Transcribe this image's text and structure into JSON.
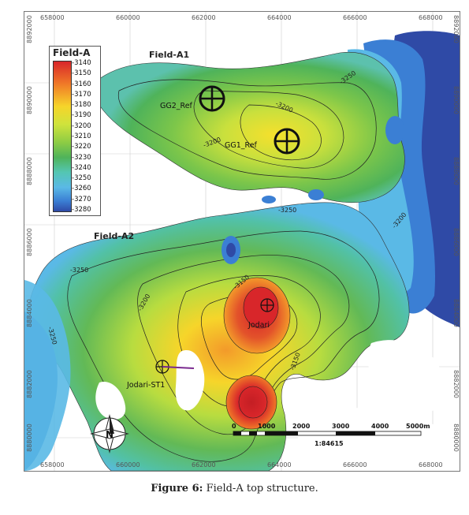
{
  "map": {
    "x_ticks_top": [
      "658000",
      "660000",
      "662000",
      "664000",
      "666000",
      "668000"
    ],
    "x_ticks_bottom": [
      "658000",
      "660000",
      "662000",
      "664000",
      "666000",
      "668000"
    ],
    "y_ticks_left": [
      "8892000",
      "8890000",
      "8888000",
      "8886000",
      "8884000",
      "8882000",
      "8880000"
    ],
    "y_ticks_right": [
      "8892000",
      "8890000",
      "8888000",
      "8886000",
      "8884000",
      "8882000",
      "8880000"
    ],
    "field_labels": {
      "a1": "Field-A1",
      "a2": "Field-A2"
    },
    "wells": [
      {
        "name": "GG2_Ref",
        "label": "GG2_Ref"
      },
      {
        "name": "GG1_Ref",
        "label": "GG1_Ref"
      },
      {
        "name": "Jodari",
        "label": "Jodari"
      },
      {
        "name": "Jodari-ST1",
        "label": "Jodari-ST1"
      }
    ],
    "contour_labels": [
      "-3200",
      "-3250",
      "-3200",
      "-3250",
      "-3200",
      "-3150",
      "-3250",
      "-3200",
      "-3150",
      "-3250"
    ],
    "scale_bar": {
      "labels": [
        "0",
        "1000",
        "2000",
        "3000",
        "4000",
        "5000m"
      ],
      "ratio": "1:84615"
    }
  },
  "legend": {
    "title": "Field-A",
    "values": [
      "-3140",
      "-3150",
      "-3160",
      "-3170",
      "-3180",
      "-3190",
      "-3200",
      "-3210",
      "-3220",
      "-3230",
      "-3240",
      "-3250",
      "-3260",
      "-3270",
      "-3280"
    ],
    "colors": {
      "high": "#d8262a",
      "mid": "#f6d52a",
      "low": "#2f4aa6"
    }
  },
  "caption": {
    "prefix": "Figure 6:",
    "text": "Field-A top structure."
  }
}
